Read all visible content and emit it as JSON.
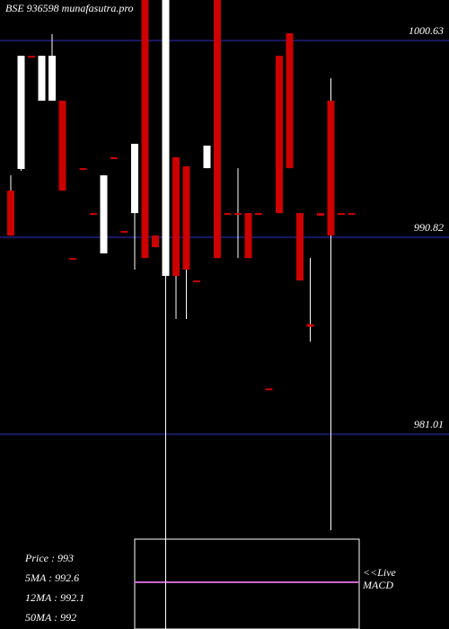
{
  "chart_data": {
    "type": "candlestick",
    "title": "BSE 936598 munafasutra.pro",
    "up_color": "#ffffff",
    "down_color": "#cc0000",
    "background": "#000000",
    "grid_color": "#1a1a66",
    "ylim": [
      971.3,
      1002.65
    ],
    "yticks": [
      1000.63,
      990.82,
      981.01
    ],
    "grid": true,
    "annotations": [
      "Price : 993",
      "5MA : 992.6",
      "12MA : 992.1",
      "50MA : 992"
    ],
    "live_label": [
      "<<Live",
      "MACD"
    ],
    "categories": [
      null,
      null,
      null,
      null,
      null,
      null,
      null,
      null,
      null,
      null,
      null,
      null,
      null,
      null,
      null,
      null,
      null,
      null,
      null,
      null,
      null,
      null,
      null,
      null,
      null,
      null,
      null,
      null,
      null,
      null,
      null,
      null,
      null,
      null
    ],
    "open": [
      993.15,
      994.23,
      999.87,
      997.63,
      997.63,
      997.63,
      989.79,
      994.27,
      992.03,
      990.02,
      994.81,
      991.14,
      992.03,
      1002.65,
      990.91,
      988.9,
      994.81,
      994.36,
      988.67,
      994.27,
      1002.65,
      992.03,
      992.03,
      992.03,
      992.03,
      983.29,
      999.87,
      1000.99,
      992.03,
      986.5,
      992.03,
      997.63,
      992.03,
      992.03
    ],
    "high": [
      993.91,
      999.87,
      999.87,
      999.87,
      1000.95,
      997.63,
      989.79,
      994.27,
      992.03,
      993.91,
      994.81,
      991.14,
      995.48,
      1002.65,
      990.91,
      1002.65,
      994.81,
      994.36,
      988.67,
      995.39,
      1002.65,
      992.03,
      994.27,
      992.03,
      992.03,
      983.29,
      999.87,
      1000.99,
      992.03,
      989.79,
      992.03,
      998.75,
      992.03,
      992.03
    ],
    "low": [
      990.91,
      994.14,
      999.87,
      997.63,
      997.63,
      993.15,
      989.79,
      994.27,
      992.03,
      990.02,
      994.81,
      991.14,
      989.21,
      989.79,
      990.33,
      971.3,
      986.75,
      986.75,
      988.67,
      994.27,
      989.79,
      992.03,
      989.79,
      989.79,
      991.95,
      983.29,
      992.03,
      994.27,
      988.67,
      985.62,
      991.9,
      976.22,
      992.03,
      992.03
    ],
    "close": [
      990.91,
      999.87,
      999.87,
      999.87,
      999.87,
      993.15,
      989.79,
      994.27,
      992.03,
      993.91,
      994.81,
      991.14,
      995.48,
      989.79,
      990.33,
      1002.65,
      988.9,
      989.21,
      988.67,
      995.39,
      989.79,
      992.03,
      991.95,
      989.79,
      991.95,
      983.29,
      992.03,
      994.27,
      988.67,
      986.36,
      991.9,
      990.91,
      992.03,
      992.03
    ]
  }
}
